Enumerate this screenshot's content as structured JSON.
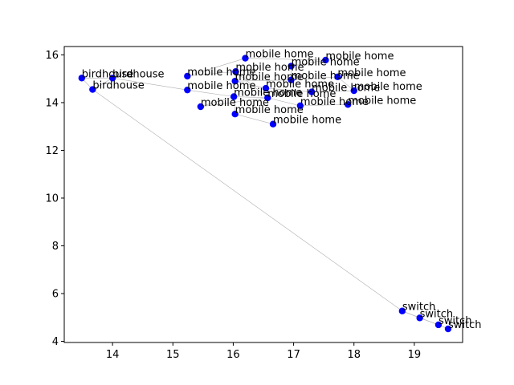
{
  "chart_data": {
    "type": "scatter",
    "title": "",
    "xlabel": "",
    "ylabel": "",
    "xlim": [
      13.2,
      19.8
    ],
    "ylim": [
      3.95,
      16.35
    ],
    "xticks": [
      14,
      15,
      16,
      17,
      18,
      19
    ],
    "yticks": [
      4,
      6,
      8,
      10,
      12,
      14,
      16
    ],
    "grid": false,
    "legend": "none",
    "point_color": "#0000ff",
    "line_color": "#b0b0b0",
    "points": [
      {
        "x": 13.49,
        "y": 15.03,
        "label": "birdhouse"
      },
      {
        "x": 14.0,
        "y": 15.03,
        "label": "birdhouse"
      },
      {
        "x": 13.67,
        "y": 14.55,
        "label": "birdhouse"
      },
      {
        "x": 16.2,
        "y": 15.86,
        "label": "mobile home"
      },
      {
        "x": 16.96,
        "y": 15.53,
        "label": "mobile home"
      },
      {
        "x": 17.53,
        "y": 15.78,
        "label": "mobile home"
      },
      {
        "x": 15.24,
        "y": 15.11,
        "label": "mobile home"
      },
      {
        "x": 16.04,
        "y": 15.3,
        "label": "mobile home"
      },
      {
        "x": 16.03,
        "y": 14.9,
        "label": "mobile home"
      },
      {
        "x": 16.96,
        "y": 14.95,
        "label": "mobile home"
      },
      {
        "x": 17.73,
        "y": 15.08,
        "label": "mobile home"
      },
      {
        "x": 15.24,
        "y": 14.53,
        "label": "mobile home"
      },
      {
        "x": 16.54,
        "y": 14.6,
        "label": "mobile home"
      },
      {
        "x": 17.3,
        "y": 14.45,
        "label": "mobile home"
      },
      {
        "x": 18.0,
        "y": 14.5,
        "label": "mobile home"
      },
      {
        "x": 16.01,
        "y": 14.25,
        "label": "mobile home"
      },
      {
        "x": 16.57,
        "y": 14.2,
        "label": "mobile home"
      },
      {
        "x": 15.46,
        "y": 13.83,
        "label": "mobile home"
      },
      {
        "x": 17.11,
        "y": 13.87,
        "label": "mobile home"
      },
      {
        "x": 17.9,
        "y": 13.92,
        "label": "mobile home"
      },
      {
        "x": 16.03,
        "y": 13.52,
        "label": "mobile home"
      },
      {
        "x": 16.66,
        "y": 13.1,
        "label": "mobile home"
      },
      {
        "x": 18.8,
        "y": 5.27,
        "label": "switch"
      },
      {
        "x": 19.09,
        "y": 4.98,
        "label": "switch"
      },
      {
        "x": 19.4,
        "y": 4.69,
        "label": "switch"
      },
      {
        "x": 19.56,
        "y": 4.52,
        "label": "switch"
      }
    ],
    "edges": [
      [
        0,
        1
      ],
      [
        1,
        2
      ],
      [
        1,
        11
      ],
      [
        0,
        2
      ],
      [
        2,
        22
      ],
      [
        3,
        5
      ],
      [
        4,
        5
      ],
      [
        3,
        6
      ],
      [
        4,
        9
      ],
      [
        6,
        7
      ],
      [
        7,
        8
      ],
      [
        8,
        9
      ],
      [
        9,
        10
      ],
      [
        11,
        15
      ],
      [
        15,
        16
      ],
      [
        12,
        13
      ],
      [
        13,
        14
      ],
      [
        12,
        16
      ],
      [
        16,
        17
      ],
      [
        17,
        15
      ],
      [
        16,
        18
      ],
      [
        18,
        19
      ],
      [
        15,
        20
      ],
      [
        20,
        21
      ],
      [
        8,
        12
      ],
      [
        10,
        14
      ],
      [
        7,
        16
      ],
      [
        22,
        23
      ],
      [
        23,
        24
      ],
      [
        24,
        25
      ],
      [
        22,
        24
      ]
    ]
  }
}
